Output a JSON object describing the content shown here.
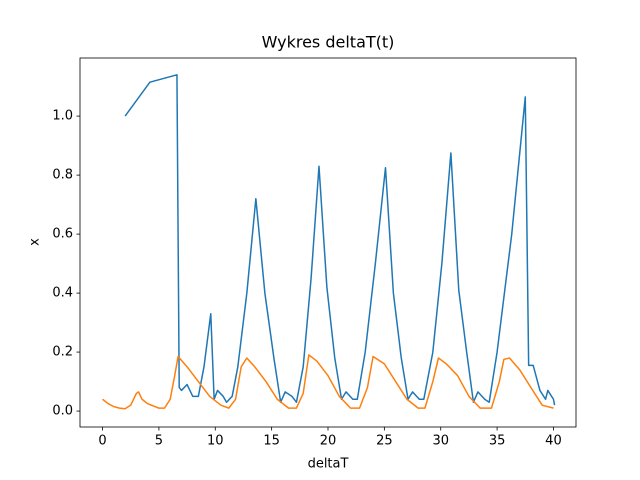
{
  "chart_data": {
    "type": "line",
    "title": "Wykres deltaT(t)",
    "xlabel": "deltaT",
    "ylabel": "x",
    "xlim": [
      -2,
      42
    ],
    "ylim": [
      -0.054,
      1.197
    ],
    "xticks": [
      0,
      5,
      10,
      15,
      20,
      25,
      30,
      35,
      40
    ],
    "yticks": [
      {
        "value": 0,
        "label": "0.0"
      },
      0.2,
      0.4,
      0.6,
      0.8,
      {
        "value": 1,
        "label": "1.0"
      }
    ],
    "series": [
      {
        "color": "#1f77b4",
        "x": [
          2.0,
          4.2,
          6.6,
          6.8,
          7.0,
          7.5,
          8.0,
          8.5,
          9.0,
          9.6,
          9.9,
          10.2,
          10.7,
          11.0,
          11.5,
          12.0,
          12.8,
          13.6,
          14.4,
          15.2,
          15.8,
          16.2,
          16.8,
          17.2,
          17.8,
          18.5,
          19.2,
          19.9,
          20.6,
          21.2,
          21.6,
          22.2,
          22.6,
          23.3,
          24.2,
          25.1,
          25.8,
          26.5,
          27.1,
          27.5,
          28.1,
          28.5,
          29.3,
          30.1,
          30.9,
          31.6,
          32.3,
          32.9,
          33.3,
          33.9,
          34.3,
          35.0,
          36.3,
          37.5,
          37.8,
          38.2,
          38.8,
          39.3,
          39.5,
          40.0,
          40.1
        ],
        "values": [
          1.0,
          1.115,
          1.14,
          0.08,
          0.07,
          0.09,
          0.05,
          0.05,
          0.15,
          0.33,
          0.04,
          0.07,
          0.05,
          0.03,
          0.05,
          0.15,
          0.4,
          0.72,
          0.4,
          0.18,
          0.03,
          0.065,
          0.05,
          0.03,
          0.15,
          0.45,
          0.83,
          0.42,
          0.18,
          0.04,
          0.065,
          0.04,
          0.04,
          0.2,
          0.5,
          0.825,
          0.4,
          0.18,
          0.04,
          0.065,
          0.04,
          0.04,
          0.2,
          0.5,
          0.875,
          0.41,
          0.2,
          0.03,
          0.065,
          0.04,
          0.03,
          0.2,
          0.6,
          1.065,
          0.155,
          0.155,
          0.07,
          0.04,
          0.07,
          0.04,
          0.02
        ]
      },
      {
        "color": "#ff7f0e",
        "x": [
          0,
          0.5,
          1,
          1.5,
          2,
          2.5,
          3.0,
          3.2,
          3.5,
          4,
          5,
          5.5,
          6,
          6.4,
          6.7,
          7.5,
          8.5,
          9.5,
          10.5,
          11.2,
          11.8,
          12.3,
          12.8,
          13.5,
          14.5,
          15.5,
          16.5,
          17.2,
          17.8,
          18.3,
          19,
          20,
          21,
          22,
          22.8,
          23.5,
          24,
          25,
          26,
          27,
          28,
          28.6,
          29.3,
          29.8,
          30.5,
          31.5,
          32.5,
          33.5,
          34.5,
          35.2,
          35.6,
          36.1,
          37,
          38,
          39,
          40
        ],
        "values": [
          0.04,
          0.025,
          0.015,
          0.01,
          0.008,
          0.02,
          0.06,
          0.065,
          0.04,
          0.025,
          0.01,
          0.01,
          0.04,
          0.12,
          0.185,
          0.15,
          0.1,
          0.05,
          0.02,
          0.01,
          0.04,
          0.15,
          0.18,
          0.15,
          0.1,
          0.04,
          0.01,
          0.01,
          0.06,
          0.19,
          0.17,
          0.12,
          0.05,
          0.01,
          0.01,
          0.08,
          0.185,
          0.16,
          0.1,
          0.04,
          0.01,
          0.01,
          0.1,
          0.18,
          0.16,
          0.12,
          0.05,
          0.01,
          0.01,
          0.1,
          0.175,
          0.18,
          0.14,
          0.08,
          0.02,
          0.01
        ]
      }
    ]
  }
}
